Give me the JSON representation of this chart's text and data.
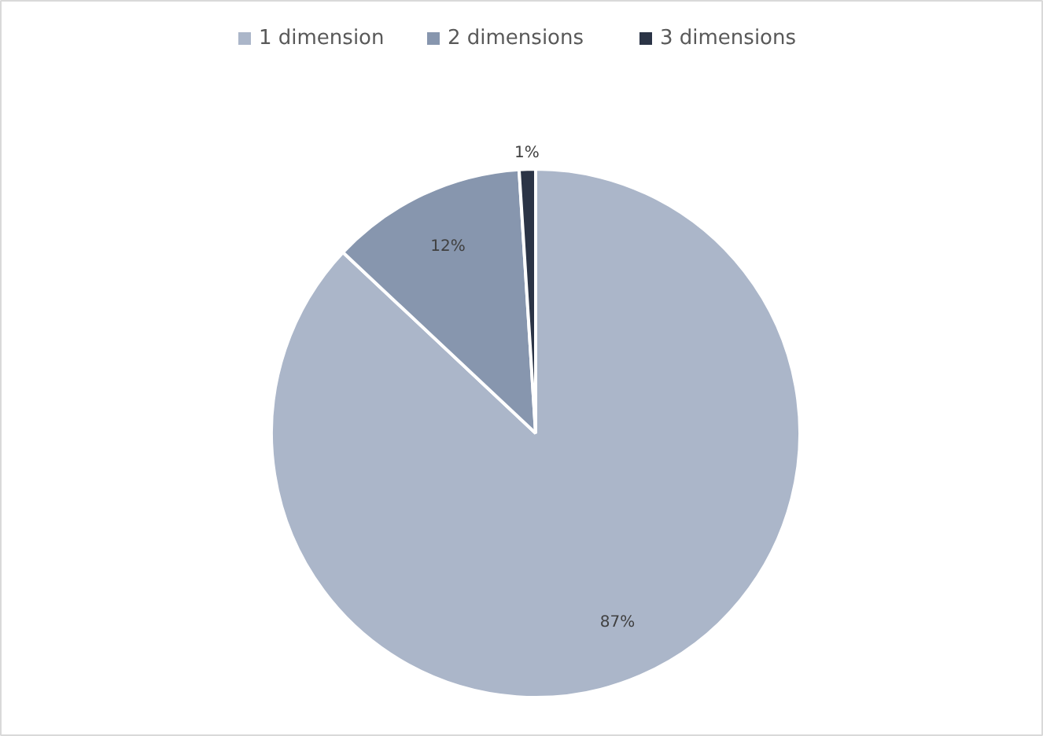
{
  "chart_data": {
    "type": "pie",
    "categories": [
      "1 dimension",
      "2 dimensions",
      "3 dimensions"
    ],
    "values": [
      87,
      12,
      1
    ],
    "colors": [
      "#abb6c9",
      "#8796ae",
      "#2b3446"
    ],
    "value_labels": [
      "87%",
      "12%",
      "1%"
    ],
    "legend": "top"
  }
}
